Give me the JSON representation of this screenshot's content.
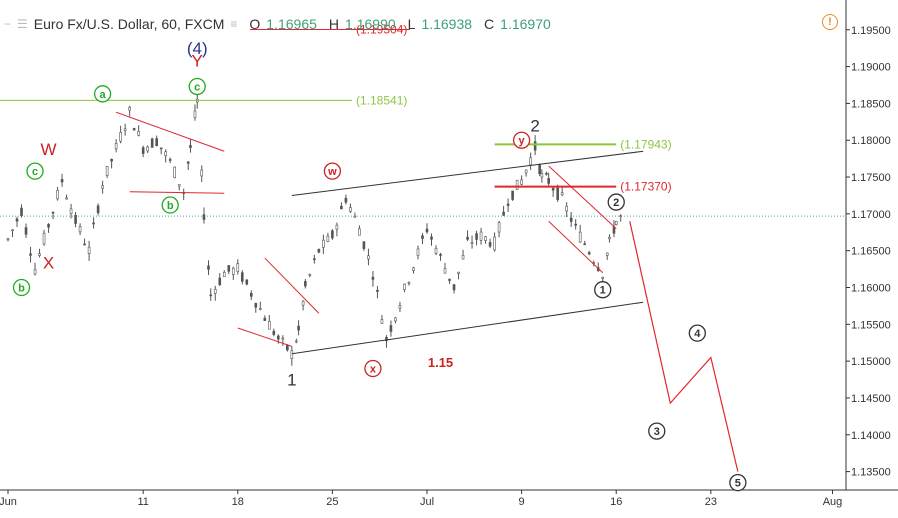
{
  "header": {
    "symbol_title": "Euro Fx/U.S. Dollar, 60, FXCM",
    "open_label": "O",
    "open_value": "1.16965",
    "high_label": "H",
    "high_value": "1.16990",
    "low_label": "L",
    "low_value": "1.16938",
    "close_label": "C",
    "close_value": "1.16970",
    "overlapped_price_label": "(1.19504)"
  },
  "colors": {
    "candle": "#555555",
    "trend_red": "#e0282e",
    "channel": "#333333",
    "green_level": "#8cc63f",
    "dotted_level": "#4aa3a3",
    "wave_green": "#22aa22",
    "wave_red": "#cc2222",
    "wave_blue": "#283593",
    "axis_text": "#333333"
  },
  "chart_data": {
    "type": "candlestick",
    "title": "Euro Fx/U.S. Dollar, 60, FXCM",
    "x_axis": {
      "ticks": [
        "Jun",
        "11",
        "18",
        "25",
        "Jul",
        "9",
        "16",
        "23",
        "Aug"
      ],
      "range": [
        "2018-06-01",
        "2018-08-02"
      ]
    },
    "y_axis": {
      "ticks": [
        "1.19500",
        "1.19000",
        "1.18500",
        "1.18000",
        "1.17500",
        "1.17000",
        "1.16500",
        "1.16000",
        "1.15500",
        "1.15000",
        "1.14500",
        "1.14000",
        "1.13500"
      ],
      "range": [
        1.1325,
        1.1985
      ]
    },
    "price_path": [
      [
        "2018-06-01",
        1.1665
      ],
      [
        "2018-06-02",
        1.1705
      ],
      [
        "2018-06-03",
        1.1625
      ],
      [
        "2018-06-05",
        1.1745
      ],
      [
        "2018-06-06",
        1.169
      ],
      [
        "2018-06-07",
        1.165
      ],
      [
        "2018-06-08",
        1.174
      ],
      [
        "2018-06-10",
        1.1838
      ],
      [
        "2018-06-11",
        1.179
      ],
      [
        "2018-06-12",
        1.18
      ],
      [
        "2018-06-13",
        1.177
      ],
      [
        "2018-06-14",
        1.173
      ],
      [
        "2018-06-14T12",
        1.179
      ],
      [
        "2018-06-15",
        1.1852
      ],
      [
        "2018-06-15T12",
        1.17
      ],
      [
        "2018-06-16",
        1.159
      ],
      [
        "2018-06-17",
        1.162
      ],
      [
        "2018-06-18",
        1.1625
      ],
      [
        "2018-06-20",
        1.156
      ],
      [
        "2018-06-21",
        1.153
      ],
      [
        "2018-06-22",
        1.151
      ],
      [
        "2018-06-22T12",
        1.154
      ],
      [
        "2018-06-23",
        1.16
      ],
      [
        "2018-06-24",
        1.165
      ],
      [
        "2018-06-25",
        1.167
      ],
      [
        "2018-06-26",
        1.1722
      ],
      [
        "2018-06-27",
        1.168
      ],
      [
        "2018-06-28",
        1.162
      ],
      [
        "2018-06-29",
        1.153
      ],
      [
        "2018-06-30",
        1.158
      ],
      [
        "2018-07-01",
        1.163
      ],
      [
        "2018-07-02",
        1.168
      ],
      [
        "2018-07-03",
        1.164
      ],
      [
        "2018-07-04",
        1.16
      ],
      [
        "2018-07-05",
        1.166
      ],
      [
        "2018-07-06",
        1.167
      ],
      [
        "2018-07-07",
        1.166
      ],
      [
        "2018-07-08",
        1.172
      ],
      [
        "2018-07-09",
        1.1745
      ],
      [
        "2018-07-10",
        1.179
      ],
      [
        "2018-07-10T12",
        1.175
      ],
      [
        "2018-07-11",
        1.1745
      ],
      [
        "2018-07-12",
        1.172
      ],
      [
        "2018-07-13",
        1.168
      ],
      [
        "2018-07-14",
        1.165
      ],
      [
        "2018-07-15",
        1.162
      ],
      [
        "2018-07-15T12",
        1.166
      ],
      [
        "2018-07-16",
        1.169
      ],
      [
        "2018-07-16T12",
        1.1697
      ]
    ],
    "horizontal_levels": [
      {
        "label": "(1.18541)",
        "value": 1.18541,
        "color": "#8cc63f"
      },
      {
        "label": "(1.17943)",
        "value": 1.17943,
        "color": "#8cc63f"
      },
      {
        "label": "(1.17370)",
        "value": 1.1737,
        "color": "#e0282e"
      },
      {
        "label": "(1.19504)",
        "value": 1.19504,
        "color": "#e0282e"
      }
    ],
    "projection": [
      [
        "2018-07-17",
        1.169
      ],
      [
        "2018-07-20",
        1.1443
      ],
      [
        "2018-07-23",
        1.1505
      ],
      [
        "2018-07-25",
        1.135
      ]
    ],
    "wave_labels": [
      {
        "text": "W",
        "x": "2018-06-04",
        "y": 1.1788,
        "style": "plain",
        "color": "#cc2222"
      },
      {
        "text": "X",
        "x": "2018-06-04",
        "y": 1.1634,
        "style": "plain",
        "color": "#cc2222"
      },
      {
        "text": "c",
        "x": "2018-06-03",
        "y": 1.1758,
        "style": "circle",
        "color": "#22aa22"
      },
      {
        "text": "b",
        "x": "2018-06-02",
        "y": 1.16,
        "style": "circle",
        "color": "#22aa22"
      },
      {
        "text": "a",
        "x": "2018-06-08",
        "y": 1.1863,
        "style": "circle",
        "color": "#22aa22"
      },
      {
        "text": "b",
        "x": "2018-06-13",
        "y": 1.1712,
        "style": "circle",
        "color": "#22aa22"
      },
      {
        "text": "c",
        "x": "2018-06-15",
        "y": 1.1873,
        "style": "circle",
        "color": "#22aa22"
      },
      {
        "text": "(4)",
        "x": "2018-06-15",
        "y": 1.1925,
        "style": "plain",
        "color": "#283593"
      },
      {
        "text": "Y",
        "x": "2018-06-15",
        "y": 1.1908,
        "style": "plain",
        "color": "#cc2222"
      },
      {
        "text": "w",
        "x": "2018-06-25",
        "y": 1.1758,
        "style": "circle",
        "color": "#cc2222"
      },
      {
        "text": "x",
        "x": "2018-06-28",
        "y": 1.149,
        "style": "circle",
        "color": "#cc2222"
      },
      {
        "text": "y",
        "x": "2018-07-09",
        "y": 1.18,
        "style": "circle",
        "color": "#cc2222"
      },
      {
        "text": "1",
        "x": "2018-06-22",
        "y": 1.1475,
        "style": "plain",
        "color": "#333333"
      },
      {
        "text": "2",
        "x": "2018-07-10",
        "y": 1.182,
        "style": "plain",
        "color": "#333333"
      },
      {
        "text": "1.15",
        "x": "2018-07-03",
        "y": 1.15,
        "style": "bold",
        "color": "#cc2222"
      },
      {
        "text": "1",
        "x": "2018-07-15",
        "y": 1.1597,
        "style": "circle",
        "color": "#333333"
      },
      {
        "text": "2",
        "x": "2018-07-16",
        "y": 1.1716,
        "style": "circle",
        "color": "#333333"
      },
      {
        "text": "3",
        "x": "2018-07-19",
        "y": 1.1405,
        "style": "circle",
        "color": "#333333"
      },
      {
        "text": "4",
        "x": "2018-07-22",
        "y": 1.1538,
        "style": "circle",
        "color": "#333333"
      },
      {
        "text": "5",
        "x": "2018-07-25",
        "y": 1.1335,
        "style": "circle",
        "color": "#333333"
      }
    ]
  }
}
